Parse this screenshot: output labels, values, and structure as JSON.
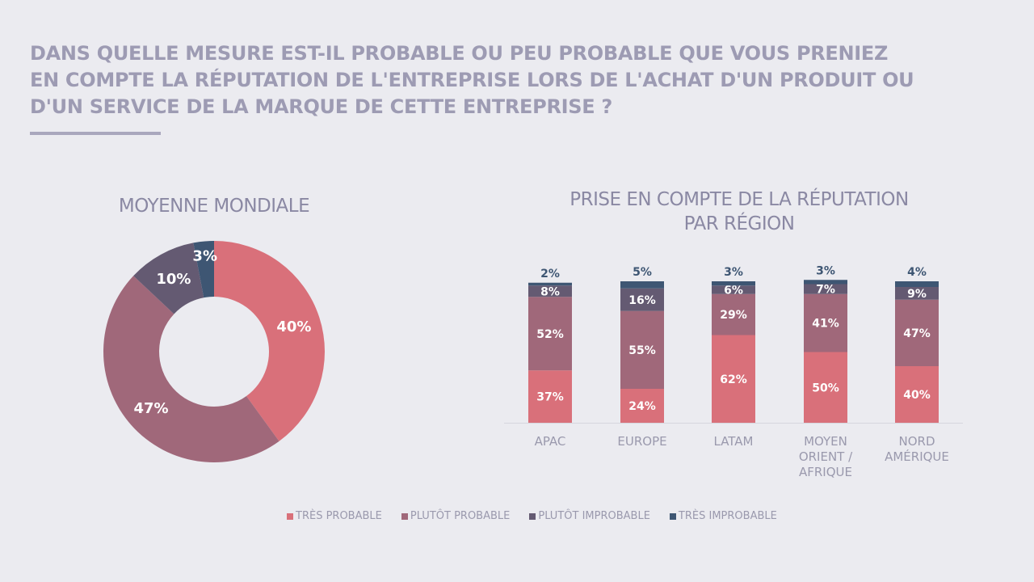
{
  "title": "DANS QUELLE MESURE EST-IL PROBABLE OU PEU PROBABLE QUE VOUS PRENIEZ EN COMPTE LA RÉPUTATION DE L'ENTREPRISE LORS DE L'ACHAT D'UN PRODUIT OU D'UN SERVICE DE LA MARQUE DE CETTE ENTREPRISE ?",
  "legend": [
    {
      "label": "TRÈS PROBABLE",
      "color": "#d9707a"
    },
    {
      "label": "PLUTÔT PROBABLE",
      "color": "#a0687a"
    },
    {
      "label": "PLUTÔT IMPROBABLE",
      "color": "#645a72"
    },
    {
      "label": "TRÈS IMPROBABLE",
      "color": "#3e5673"
    }
  ],
  "chart_data": [
    {
      "type": "pie",
      "title": "MOYENNE MONDIALE",
      "donut": true,
      "categories": [
        "TRÈS PROBABLE",
        "PLUTÔT PROBABLE",
        "PLUTÔT IMPROBABLE",
        "TRÈS IMPROBABLE"
      ],
      "values": [
        40,
        47,
        10,
        3
      ],
      "labels": [
        "40%",
        "47%",
        "10%",
        "3%"
      ]
    },
    {
      "type": "bar",
      "stacked": true,
      "title": "PRISE EN COMPTE DE LA RÉPUTATION PAR RÉGION",
      "title_lines": [
        "PRISE EN COMPTE DE LA RÉPUTATION",
        "PAR RÉGION"
      ],
      "categories": [
        "APAC",
        "EUROPE",
        "LATAM",
        "MOYEN ORIENT / AFRIQUE",
        "NORD AMÉRIQUE"
      ],
      "category_lines": [
        [
          "APAC"
        ],
        [
          "EUROPE"
        ],
        [
          "LATAM"
        ],
        [
          "MOYEN",
          "ORIENT /",
          "AFRIQUE"
        ],
        [
          "NORD",
          "AMÉRIQUE"
        ]
      ],
      "series": [
        {
          "name": "TRÈS PROBABLE",
          "values": [
            37,
            24,
            62,
            50,
            40
          ]
        },
        {
          "name": "PLUTÔT PROBABLE",
          "values": [
            52,
            55,
            29,
            41,
            47
          ]
        },
        {
          "name": "PLUTÔT IMPROBABLE",
          "values": [
            8,
            16,
            6,
            7,
            9
          ]
        },
        {
          "name": "TRÈS IMPROBABLE",
          "values": [
            2,
            5,
            3,
            3,
            4
          ]
        }
      ],
      "ylim": [
        0,
        100
      ],
      "legend_position": "bottom"
    }
  ]
}
